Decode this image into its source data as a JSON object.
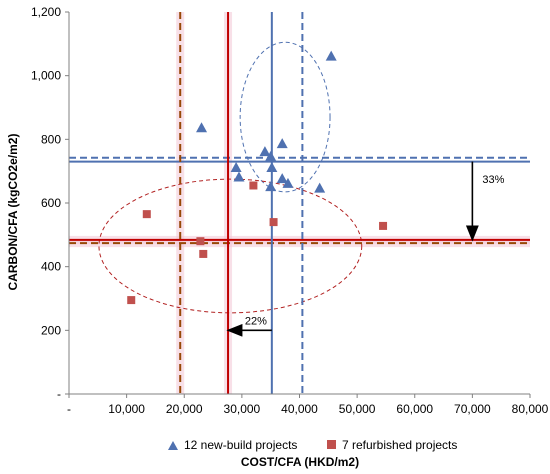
{
  "chart_data": {
    "type": "scatter",
    "xlabel": "COST/CFA (HKD/m2)",
    "ylabel": "CARBON/CFA (kgCO2e/m2)",
    "xlim": [
      0,
      80000
    ],
    "ylim": [
      0,
      1200
    ],
    "xticks": [
      0,
      10000,
      20000,
      30000,
      40000,
      50000,
      60000,
      70000,
      80000
    ],
    "xtick_labels": [
      "-",
      "10,000",
      "20,000",
      "30,000",
      "40,000",
      "50,000",
      "60,000",
      "70,000",
      "80,000"
    ],
    "yticks": [
      0,
      200,
      400,
      600,
      800,
      1000,
      1200
    ],
    "ytick_labels": [
      "-",
      "200",
      "400",
      "600",
      "800",
      "1,000",
      "1,200"
    ],
    "grid": false,
    "legend_position": "bottom",
    "series": [
      {
        "name": "12 new-build projects",
        "marker": "triangle",
        "color": "#4f71b0",
        "points": [
          {
            "x": 23000,
            "y": 835
          },
          {
            "x": 29000,
            "y": 710
          },
          {
            "x": 29500,
            "y": 680
          },
          {
            "x": 34000,
            "y": 760
          },
          {
            "x": 35000,
            "y": 745
          },
          {
            "x": 35200,
            "y": 710
          },
          {
            "x": 35000,
            "y": 650
          },
          {
            "x": 37000,
            "y": 785
          },
          {
            "x": 37000,
            "y": 675
          },
          {
            "x": 38000,
            "y": 660
          },
          {
            "x": 43500,
            "y": 645
          },
          {
            "x": 45500,
            "y": 1060
          }
        ]
      },
      {
        "name": "7 refurbished projects",
        "marker": "square",
        "color": "#c0504d",
        "points": [
          {
            "x": 10800,
            "y": 295
          },
          {
            "x": 13500,
            "y": 565
          },
          {
            "x": 22800,
            "y": 480
          },
          {
            "x": 23300,
            "y": 440
          },
          {
            "x": 32000,
            "y": 655
          },
          {
            "x": 35500,
            "y": 540
          },
          {
            "x": 54500,
            "y": 528
          }
        ]
      }
    ],
    "reference_lines": [
      {
        "orientation": "horizontal",
        "value": 730,
        "style": "solid",
        "color": "#4f71b0"
      },
      {
        "orientation": "horizontal",
        "value": 742,
        "style": "dashed",
        "color": "#4f71b0"
      },
      {
        "orientation": "horizontal",
        "value": 484,
        "style": "solid",
        "color": "#c00000"
      },
      {
        "orientation": "horizontal",
        "value": 474,
        "style": "dashed",
        "color": "#984807"
      },
      {
        "orientation": "vertical",
        "value": 35200,
        "style": "solid",
        "color": "#4f71b0"
      },
      {
        "orientation": "vertical",
        "value": 40500,
        "style": "dashed",
        "color": "#4f71b0"
      },
      {
        "orientation": "vertical",
        "value": 27600,
        "style": "solid",
        "color": "#c00000"
      },
      {
        "orientation": "vertical",
        "value": 19300,
        "style": "dashed",
        "color": "#984807"
      }
    ],
    "ellipses": [
      {
        "cx": 37500,
        "cy": 870,
        "rx": 7800,
        "ry": 235,
        "color": "#4f71b0"
      },
      {
        "cx": 28000,
        "cy": 465,
        "rx": 22800,
        "ry": 210,
        "color": "#b22222"
      }
    ],
    "annotations": [
      {
        "text": "33%",
        "arrow_from": [
          70000,
          730
        ],
        "arrow_to": [
          70000,
          484
        ]
      },
      {
        "text": "22%",
        "arrow_from": [
          35200,
          200
        ],
        "arrow_to": [
          27600,
          200
        ]
      }
    ]
  }
}
